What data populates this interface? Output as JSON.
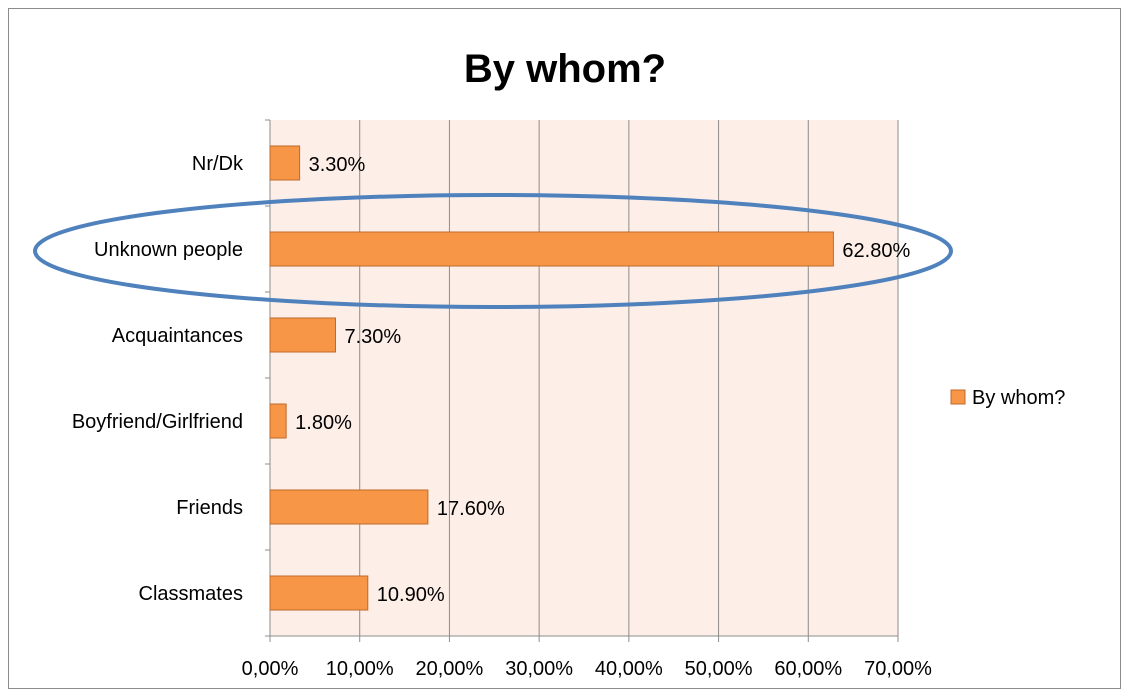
{
  "chart_data": {
    "type": "bar",
    "orientation": "horizontal",
    "title": "By whom?",
    "categories": [
      "Nr/Dk",
      "Unknown people",
      "Acquaintances",
      "Boyfriend/Girlfriend",
      "Friends",
      "Classmates"
    ],
    "series": [
      {
        "name": "By whom?",
        "values": [
          3.3,
          62.8,
          7.3,
          1.8,
          17.6,
          10.9
        ],
        "labels": [
          "3.30%",
          "62.80%",
          "7.30%",
          "1.80%",
          "17.60%",
          "10.90%"
        ],
        "color": "#F79646"
      }
    ],
    "xlim": [
      0,
      70
    ],
    "xticks": [
      0,
      10,
      20,
      30,
      40,
      50,
      60,
      70
    ],
    "xtick_labels": [
      "0,00%",
      "10,00%",
      "20,00%",
      "30,00%",
      "40,00%",
      "50,00%",
      "60,00%",
      "70,00%"
    ],
    "xlabel": "",
    "ylabel": "",
    "grid": true,
    "legend": "right",
    "plot_background": "#FDEEE8",
    "annotations": [
      {
        "type": "ellipse",
        "target": "Unknown people",
        "color": "#4F81BD"
      }
    ]
  }
}
